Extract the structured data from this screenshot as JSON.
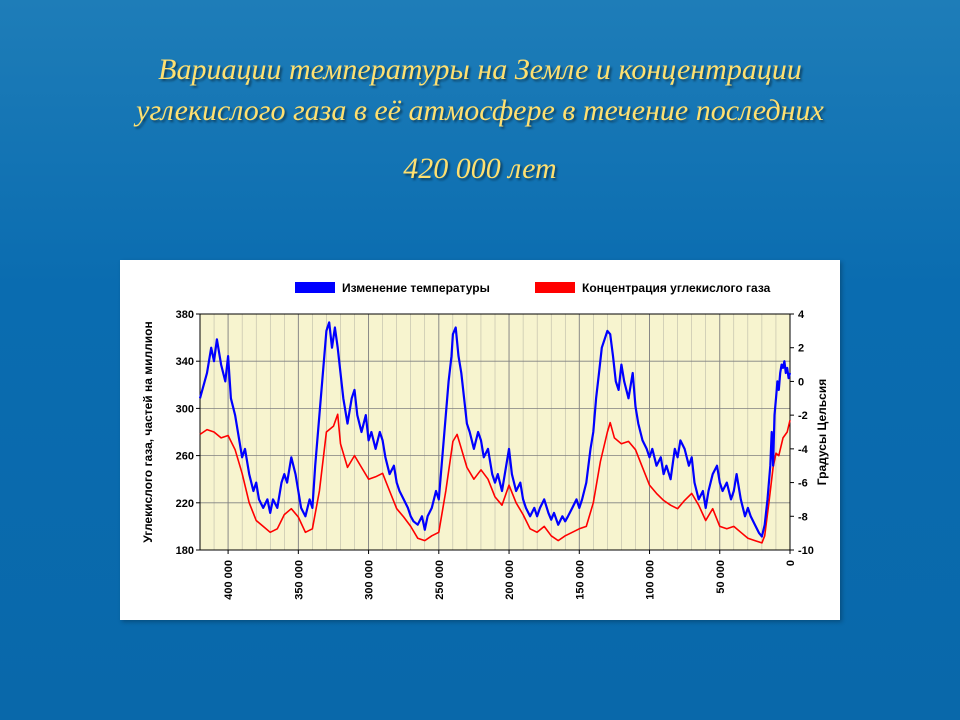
{
  "title_line1": "Вариации температуры на Земле и концентрации",
  "title_line2": "углекислого газа в её атмосфере в течение последних",
  "title_line3": "420 000 лет",
  "chart": {
    "type": "line",
    "background_color": "#ffffff",
    "plot_background": "#f7f4cf",
    "grid_color": "#808080",
    "y_left": {
      "label": "Углекислого газа, частей на миллион",
      "min": 180,
      "max": 380,
      "tick_step": 40,
      "label_fontsize": 12,
      "color": "#000000"
    },
    "y_right": {
      "label": "Градусы Цельсия",
      "min": -10,
      "max": 4,
      "tick_step": 2,
      "label_fontsize": 12,
      "color": "#000000"
    },
    "x": {
      "min": 0,
      "max": 420000,
      "ticks": [
        400000,
        350000,
        300000,
        250000,
        200000,
        150000,
        100000,
        50000,
        0
      ],
      "tick_labels": [
        "400 000",
        "350 000",
        "300 000",
        "250 000",
        "200 000",
        "150 000",
        "100 000",
        "50 000",
        "0"
      ],
      "reverse": true,
      "minor_tick_step": 10000
    },
    "legend": {
      "series1": {
        "name": "Изменение температуры",
        "color": "#0000ff"
      },
      "series2": {
        "name": "Концентрация углекислого газа",
        "color": "#ff0000"
      }
    },
    "series_co2": {
      "color": "#ff0000",
      "line_width": 1.6,
      "axis": "left",
      "data": [
        [
          420000,
          278
        ],
        [
          415000,
          282
        ],
        [
          410000,
          280
        ],
        [
          405000,
          275
        ],
        [
          400000,
          277
        ],
        [
          395000,
          265
        ],
        [
          390000,
          245
        ],
        [
          385000,
          220
        ],
        [
          380000,
          205
        ],
        [
          375000,
          200
        ],
        [
          370000,
          195
        ],
        [
          365000,
          198
        ],
        [
          360000,
          210
        ],
        [
          355000,
          215
        ],
        [
          350000,
          208
        ],
        [
          345000,
          195
        ],
        [
          340000,
          198
        ],
        [
          335000,
          230
        ],
        [
          330000,
          280
        ],
        [
          325000,
          285
        ],
        [
          322000,
          295
        ],
        [
          320000,
          270
        ],
        [
          315000,
          250
        ],
        [
          310000,
          260
        ],
        [
          305000,
          250
        ],
        [
          300000,
          240
        ],
        [
          295000,
          242
        ],
        [
          290000,
          245
        ],
        [
          285000,
          230
        ],
        [
          280000,
          215
        ],
        [
          275000,
          208
        ],
        [
          270000,
          200
        ],
        [
          265000,
          190
        ],
        [
          260000,
          188
        ],
        [
          255000,
          192
        ],
        [
          250000,
          195
        ],
        [
          245000,
          230
        ],
        [
          240000,
          272
        ],
        [
          237000,
          278
        ],
        [
          235000,
          270
        ],
        [
          230000,
          250
        ],
        [
          225000,
          240
        ],
        [
          220000,
          248
        ],
        [
          215000,
          240
        ],
        [
          210000,
          225
        ],
        [
          205000,
          218
        ],
        [
          200000,
          235
        ],
        [
          195000,
          220
        ],
        [
          190000,
          210
        ],
        [
          185000,
          198
        ],
        [
          180000,
          195
        ],
        [
          175000,
          200
        ],
        [
          170000,
          192
        ],
        [
          165000,
          188
        ],
        [
          160000,
          192
        ],
        [
          155000,
          195
        ],
        [
          150000,
          198
        ],
        [
          145000,
          200
        ],
        [
          140000,
          220
        ],
        [
          135000,
          255
        ],
        [
          130000,
          280
        ],
        [
          128000,
          288
        ],
        [
          125000,
          275
        ],
        [
          120000,
          270
        ],
        [
          115000,
          272
        ],
        [
          110000,
          265
        ],
        [
          105000,
          250
        ],
        [
          100000,
          235
        ],
        [
          95000,
          228
        ],
        [
          90000,
          222
        ],
        [
          85000,
          218
        ],
        [
          80000,
          215
        ],
        [
          75000,
          222
        ],
        [
          70000,
          228
        ],
        [
          65000,
          218
        ],
        [
          60000,
          205
        ],
        [
          55000,
          215
        ],
        [
          50000,
          200
        ],
        [
          45000,
          198
        ],
        [
          40000,
          200
        ],
        [
          35000,
          195
        ],
        [
          30000,
          190
        ],
        [
          25000,
          188
        ],
        [
          20000,
          186
        ],
        [
          18000,
          192
        ],
        [
          15000,
          220
        ],
        [
          12000,
          250
        ],
        [
          10000,
          262
        ],
        [
          8000,
          260
        ],
        [
          5000,
          275
        ],
        [
          2000,
          280
        ],
        [
          0,
          290
        ]
      ]
    },
    "series_temp": {
      "color": "#0000ff",
      "line_width": 2.2,
      "axis": "right",
      "data": [
        [
          420000,
          -1
        ],
        [
          415000,
          0.5
        ],
        [
          412000,
          2
        ],
        [
          410000,
          1.2
        ],
        [
          408000,
          2.5
        ],
        [
          405000,
          1
        ],
        [
          402000,
          0
        ],
        [
          400000,
          1.5
        ],
        [
          398000,
          -1
        ],
        [
          395000,
          -2
        ],
        [
          392000,
          -3.5
        ],
        [
          390000,
          -4.5
        ],
        [
          388000,
          -4
        ],
        [
          385000,
          -5.5
        ],
        [
          382000,
          -6.5
        ],
        [
          380000,
          -6
        ],
        [
          378000,
          -7
        ],
        [
          375000,
          -7.5
        ],
        [
          372000,
          -7
        ],
        [
          370000,
          -7.8
        ],
        [
          368000,
          -7
        ],
        [
          365000,
          -7.5
        ],
        [
          362000,
          -6
        ],
        [
          360000,
          -5.5
        ],
        [
          358000,
          -6
        ],
        [
          355000,
          -4.5
        ],
        [
          352000,
          -5.5
        ],
        [
          350000,
          -6.5
        ],
        [
          348000,
          -7.5
        ],
        [
          345000,
          -8
        ],
        [
          342000,
          -7
        ],
        [
          340000,
          -7.5
        ],
        [
          338000,
          -5
        ],
        [
          335000,
          -2
        ],
        [
          333000,
          0
        ],
        [
          331000,
          2
        ],
        [
          330000,
          3
        ],
        [
          328000,
          3.5
        ],
        [
          326000,
          2
        ],
        [
          324000,
          3.2
        ],
        [
          322000,
          2
        ],
        [
          320000,
          0.5
        ],
        [
          318000,
          -1
        ],
        [
          315000,
          -2.5
        ],
        [
          312000,
          -1
        ],
        [
          310000,
          -0.5
        ],
        [
          308000,
          -2
        ],
        [
          305000,
          -3
        ],
        [
          302000,
          -2
        ],
        [
          300000,
          -3.5
        ],
        [
          298000,
          -3
        ],
        [
          295000,
          -4
        ],
        [
          292000,
          -3
        ],
        [
          290000,
          -3.5
        ],
        [
          288000,
          -4.5
        ],
        [
          285000,
          -5.5
        ],
        [
          282000,
          -5
        ],
        [
          280000,
          -6
        ],
        [
          278000,
          -6.5
        ],
        [
          275000,
          -7
        ],
        [
          272000,
          -7.5
        ],
        [
          270000,
          -8
        ],
        [
          268000,
          -8.3
        ],
        [
          265000,
          -8.5
        ],
        [
          262000,
          -8
        ],
        [
          260000,
          -8.8
        ],
        [
          258000,
          -8
        ],
        [
          255000,
          -7.5
        ],
        [
          252000,
          -6.5
        ],
        [
          250000,
          -7
        ],
        [
          248000,
          -5
        ],
        [
          245000,
          -2
        ],
        [
          243000,
          0
        ],
        [
          241000,
          1.5
        ],
        [
          240000,
          2.8
        ],
        [
          238000,
          3.2
        ],
        [
          236000,
          1.5
        ],
        [
          234000,
          0.5
        ],
        [
          232000,
          -1
        ],
        [
          230000,
          -2.5
        ],
        [
          228000,
          -3
        ],
        [
          225000,
          -4
        ],
        [
          222000,
          -3
        ],
        [
          220000,
          -3.5
        ],
        [
          218000,
          -4.5
        ],
        [
          215000,
          -4
        ],
        [
          212000,
          -5.5
        ],
        [
          210000,
          -6
        ],
        [
          208000,
          -5.5
        ],
        [
          205000,
          -6.5
        ],
        [
          202000,
          -5
        ],
        [
          200000,
          -4
        ],
        [
          198000,
          -5.5
        ],
        [
          195000,
          -6.5
        ],
        [
          192000,
          -6
        ],
        [
          190000,
          -7
        ],
        [
          188000,
          -7.5
        ],
        [
          185000,
          -8
        ],
        [
          182000,
          -7.5
        ],
        [
          180000,
          -8
        ],
        [
          178000,
          -7.5
        ],
        [
          175000,
          -7
        ],
        [
          172000,
          -7.8
        ],
        [
          170000,
          -8.2
        ],
        [
          168000,
          -7.8
        ],
        [
          165000,
          -8.5
        ],
        [
          162000,
          -8
        ],
        [
          160000,
          -8.3
        ],
        [
          158000,
          -8
        ],
        [
          155000,
          -7.5
        ],
        [
          152000,
          -7
        ],
        [
          150000,
          -7.5
        ],
        [
          148000,
          -7
        ],
        [
          145000,
          -6
        ],
        [
          142000,
          -4
        ],
        [
          140000,
          -3
        ],
        [
          138000,
          -1
        ],
        [
          136000,
          0.5
        ],
        [
          134000,
          2
        ],
        [
          132000,
          2.5
        ],
        [
          130000,
          3
        ],
        [
          128000,
          2.8
        ],
        [
          126000,
          1.5
        ],
        [
          124000,
          0
        ],
        [
          122000,
          -0.5
        ],
        [
          120000,
          1
        ],
        [
          118000,
          0
        ],
        [
          115000,
          -1
        ],
        [
          112000,
          0.5
        ],
        [
          110000,
          -1.5
        ],
        [
          108000,
          -2.5
        ],
        [
          105000,
          -3.5
        ],
        [
          102000,
          -4
        ],
        [
          100000,
          -4.5
        ],
        [
          98000,
          -4
        ],
        [
          95000,
          -5
        ],
        [
          92000,
          -4.5
        ],
        [
          90000,
          -5.5
        ],
        [
          88000,
          -5
        ],
        [
          85000,
          -5.8
        ],
        [
          82000,
          -4
        ],
        [
          80000,
          -4.5
        ],
        [
          78000,
          -3.5
        ],
        [
          75000,
          -4
        ],
        [
          72000,
          -5
        ],
        [
          70000,
          -4.5
        ],
        [
          68000,
          -6
        ],
        [
          65000,
          -7
        ],
        [
          62000,
          -6.5
        ],
        [
          60000,
          -7.5
        ],
        [
          58000,
          -6.5
        ],
        [
          55000,
          -5.5
        ],
        [
          52000,
          -5
        ],
        [
          50000,
          -6
        ],
        [
          48000,
          -6.5
        ],
        [
          45000,
          -6
        ],
        [
          42000,
          -7
        ],
        [
          40000,
          -6.5
        ],
        [
          38000,
          -5.5
        ],
        [
          35000,
          -7
        ],
        [
          32000,
          -8
        ],
        [
          30000,
          -7.5
        ],
        [
          28000,
          -8
        ],
        [
          25000,
          -8.5
        ],
        [
          22000,
          -9
        ],
        [
          20000,
          -9.2
        ],
        [
          18000,
          -8.5
        ],
        [
          16000,
          -7
        ],
        [
          14000,
          -5
        ],
        [
          13000,
          -3
        ],
        [
          12000,
          -5
        ],
        [
          11000,
          -2
        ],
        [
          10000,
          -1
        ],
        [
          9000,
          0
        ],
        [
          8000,
          -0.5
        ],
        [
          7000,
          0.5
        ],
        [
          6000,
          1
        ],
        [
          5000,
          0.8
        ],
        [
          4000,
          1.2
        ],
        [
          3000,
          0.5
        ],
        [
          2000,
          0.8
        ],
        [
          1000,
          0.2
        ],
        [
          0,
          0.5
        ]
      ]
    }
  }
}
